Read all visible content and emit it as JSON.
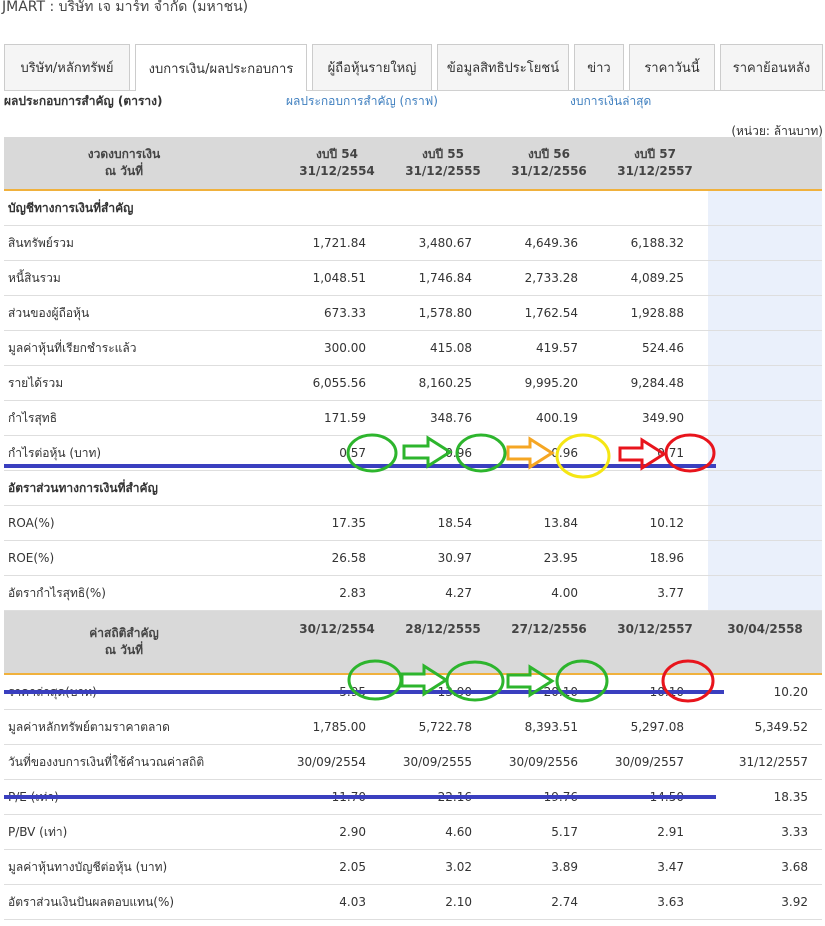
{
  "page_title": "JMART : บริษัท เจ มาร์ท จำกัด (มหาชน)",
  "tabs": [
    {
      "label": "บริษัท/หลักทรัพย์"
    },
    {
      "label": "งบการเงิน/ผลประกอบการ"
    },
    {
      "label": "ผู้ถือหุ้นรายใหญ่"
    },
    {
      "label": "ข้อมูลสิทธิประโยชน์"
    },
    {
      "label": "ข่าว"
    },
    {
      "label": "ราคาวันนี้"
    },
    {
      "label": "ราคาย้อนหลัง"
    }
  ],
  "subnav": {
    "current": "ผลประกอบการสำคัญ (ตาราง)",
    "graph_link": "ผลประกอบการสำคัญ (กราฟ)",
    "latest_link": "งบการเงินล่าสุด"
  },
  "unit_note": "(หน่วย: ล้านบาท)",
  "financials": {
    "header": {
      "label_line1": "งวดงบการเงิน",
      "label_line2": "ณ วันที่",
      "periods": [
        {
          "line1": "งบปี 54",
          "line2": "31/12/2554"
        },
        {
          "line1": "งบปี 55",
          "line2": "31/12/2555"
        },
        {
          "line1": "งบปี 56",
          "line2": "31/12/2556"
        },
        {
          "line1": "งบปี 57",
          "line2": "31/12/2557"
        }
      ]
    },
    "section1_title": "บัญชีทางการเงินที่สำคัญ",
    "section1_rows": [
      {
        "label": "สินทรัพย์รวม",
        "values": [
          "1,721.84",
          "3,480.67",
          "4,649.36",
          "6,188.32"
        ]
      },
      {
        "label": "หนี้สินรวม",
        "values": [
          "1,048.51",
          "1,746.84",
          "2,733.28",
          "4,089.25"
        ]
      },
      {
        "label": "ส่วนของผู้ถือหุ้น",
        "values": [
          "673.33",
          "1,578.80",
          "1,762.54",
          "1,928.88"
        ]
      },
      {
        "label": "มูลค่าหุ้นที่เรียกชำระแล้ว",
        "values": [
          "300.00",
          "415.08",
          "419.57",
          "524.46"
        ]
      },
      {
        "label": "รายได้รวม",
        "values": [
          "6,055.56",
          "8,160.25",
          "9,995.20",
          "9,284.48"
        ]
      },
      {
        "label": "กำไรสุทธิ",
        "values": [
          "171.59",
          "348.76",
          "400.19",
          "349.90"
        ]
      },
      {
        "label": "กำไรต่อหุ้น (บาท)",
        "values": [
          "0.57",
          "0.96",
          "0.96",
          "0.71"
        ]
      }
    ],
    "section2_title": "อัตราส่วนทางการเงินที่สำคัญ",
    "section2_rows": [
      {
        "label": "ROA(%)",
        "values": [
          "17.35",
          "18.54",
          "13.84",
          "10.12"
        ]
      },
      {
        "label": "ROE(%)",
        "values": [
          "26.58",
          "30.97",
          "23.95",
          "18.96"
        ]
      },
      {
        "label": "อัตรากำไรสุทธิ(%)",
        "values": [
          "2.83",
          "4.27",
          "4.00",
          "3.77"
        ]
      }
    ]
  },
  "stats": {
    "header": {
      "label_line1": "ค่าสถิติสำคัญ",
      "label_line2": "ณ วันที่",
      "dates": [
        "30/12/2554",
        "28/12/2555",
        "27/12/2556",
        "30/12/2557",
        "30/04/2558"
      ]
    },
    "rows": [
      {
        "label": "ราคาล่าสุด(บาท)",
        "values": [
          "5.95",
          "13.90",
          "20.10",
          "10.10",
          "10.20"
        ]
      },
      {
        "label": "มูลค่าหลักทรัพย์ตามราคาตลาด",
        "values": [
          "1,785.00",
          "5,722.78",
          "8,393.51",
          "5,297.08",
          "5,349.52"
        ]
      },
      {
        "label": "วันที่ของงบการเงินที่ใช้คำนวณค่าสถิติ",
        "values": [
          "30/09/2554",
          "30/09/2555",
          "30/09/2556",
          "30/09/2557",
          "31/12/2557"
        ]
      },
      {
        "label": "P/E (เท่า)",
        "values": [
          "11.70",
          "22.16",
          "19.76",
          "14.50",
          "18.35"
        ]
      },
      {
        "label": "P/BV (เท่า)",
        "values": [
          "2.90",
          "4.60",
          "5.17",
          "2.91",
          "3.33"
        ]
      },
      {
        "label": "มูลค่าหุ้นทางบัญชีต่อหุ้น (บาท)",
        "values": [
          "2.05",
          "3.02",
          "3.89",
          "3.47",
          "3.68"
        ]
      },
      {
        "label": "อัตราส่วนเงินปันผลตอบแทน(%)",
        "values": [
          "4.03",
          "2.10",
          "2.74",
          "3.63",
          "3.92"
        ]
      }
    ]
  },
  "annotation_colors": {
    "green": "#2db52d",
    "yellow": "#f5e614",
    "orange": "#f5a623",
    "red": "#e8141c",
    "blue": "#3a3fbf"
  }
}
